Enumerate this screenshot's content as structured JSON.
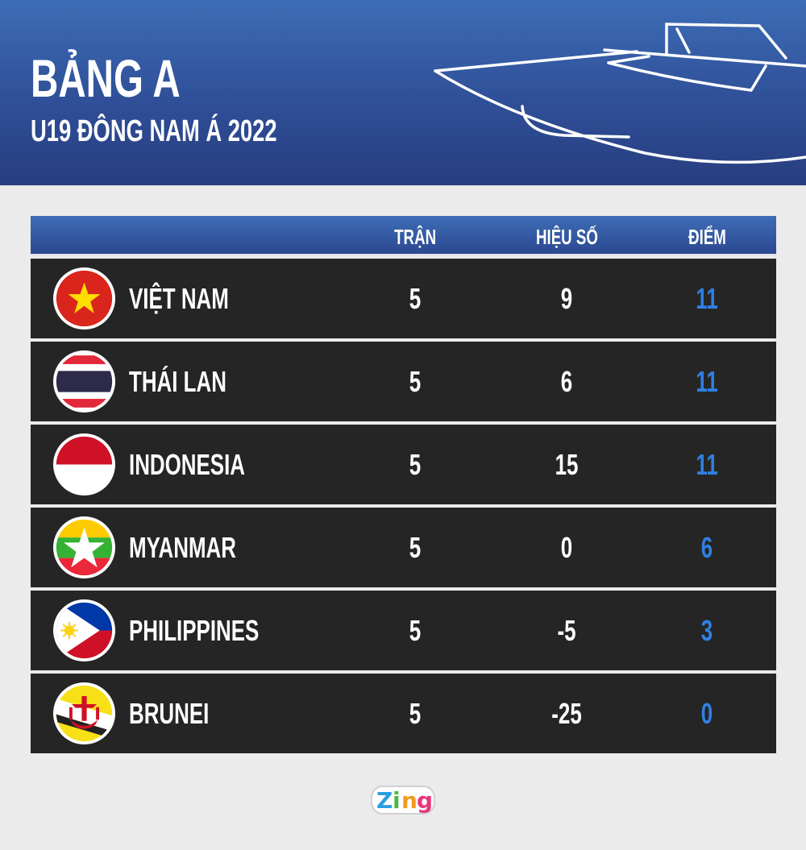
{
  "header": {
    "title": "BẢNG A",
    "subtitle": "U19 ĐÔNG NAM Á 2022"
  },
  "table": {
    "columns": [
      "TRẬN",
      "HIỆU SỐ",
      "ĐIỂM"
    ],
    "rows": [
      {
        "team": "VIỆT NAM",
        "flag": "vietnam-flag-icon",
        "played": "5",
        "goal_diff": "9",
        "points": "11"
      },
      {
        "team": "THÁI LAN",
        "flag": "thailand-flag-icon",
        "played": "5",
        "goal_diff": "6",
        "points": "11"
      },
      {
        "team": "INDONESIA",
        "flag": "indonesia-flag-icon",
        "played": "5",
        "goal_diff": "15",
        "points": "11"
      },
      {
        "team": "MYANMAR",
        "flag": "myanmar-flag-icon",
        "played": "5",
        "goal_diff": "0",
        "points": "6"
      },
      {
        "team": "PHILIPPINES",
        "flag": "philippines-flag-icon",
        "played": "5",
        "goal_diff": "-5",
        "points": "3"
      },
      {
        "team": "BRUNEI",
        "flag": "brunei-flag-icon",
        "played": "5",
        "goal_diff": "-25",
        "points": "0"
      }
    ]
  },
  "logo": {
    "text": "Zing"
  },
  "colors": {
    "banner": "#3d6db6",
    "row": "#252525",
    "points": "#2f80e2",
    "background": "#ebebeb"
  }
}
